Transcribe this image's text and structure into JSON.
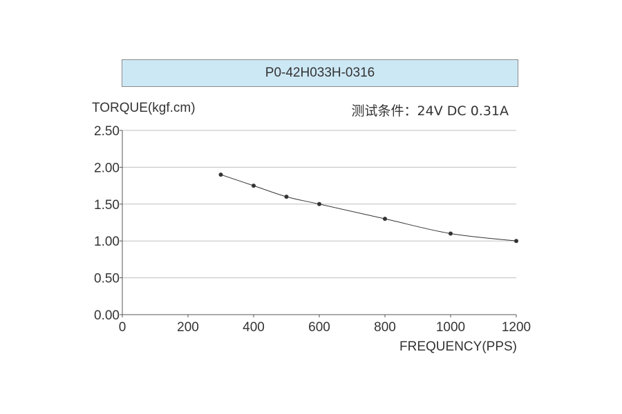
{
  "colors": {
    "title_bg": "#cde8f5",
    "grid": "#bfbfbf",
    "axis": "#555555",
    "line": "#333333"
  },
  "chart_data": {
    "type": "line",
    "title": "P0-42H033H-0316",
    "condition": "测试条件：24V DC   0.31A",
    "xlabel": "FREQUENCY(PPS)",
    "ylabel": "TORQUE(kgf.cm)",
    "xlim": [
      0,
      1200
    ],
    "ylim": [
      0,
      2.5
    ],
    "x_ticks": [
      0,
      200,
      400,
      600,
      800,
      1000,
      1200
    ],
    "y_ticks": [
      0,
      0.5,
      1.0,
      1.5,
      2.0,
      2.5
    ],
    "x_tick_labels": [
      "0",
      "200",
      "400",
      "600",
      "800",
      "1000",
      "1200"
    ],
    "y_tick_labels": [
      "0.00",
      "0.50",
      "1.00",
      "1.50",
      "2.00",
      "2.50"
    ],
    "grid": "horizontal",
    "series": [
      {
        "x": [
          300,
          400,
          500,
          600,
          800,
          1000,
          1200
        ],
        "y": [
          1.9,
          1.75,
          1.6,
          1.5,
          1.3,
          1.1,
          1.0
        ]
      }
    ]
  }
}
